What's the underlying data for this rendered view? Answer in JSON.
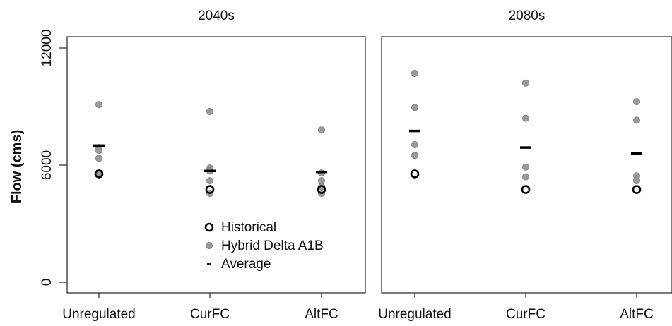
{
  "chart_data": {
    "type": "scatter",
    "ylabel": "Flow (cms)",
    "ylim": [
      0,
      12000
    ],
    "yticks": [
      0,
      6000,
      12000
    ],
    "categories": [
      "Unregulated",
      "CurFC",
      "AltFC"
    ],
    "legend": {
      "placement": "bottom-center of left panel",
      "entries": [
        {
          "label": "Historical",
          "marker": "open-circle"
        },
        {
          "label": "Hybrid Delta A1B",
          "marker": "gray-dot"
        },
        {
          "label": "Average",
          "marker": "dash"
        }
      ]
    },
    "colors": {
      "hybrid": "#9a9a9a",
      "historical": "#000000",
      "average": "#000000"
    },
    "panels": [
      {
        "title": "2040s",
        "series": [
          {
            "name": "Historical",
            "values": [
              5550,
              4750,
              4750
            ]
          },
          {
            "name": "Hybrid Delta A1B",
            "values": [
              [
                9100,
                6900,
                6750,
                6350,
                5600
              ],
              [
                8750,
                5850,
                5700,
                5200,
                4550
              ],
              [
                7800,
                5600,
                5200,
                4900,
                4550
              ]
            ]
          },
          {
            "name": "Average",
            "values": [
              7000,
              5700,
              5650
            ]
          }
        ]
      },
      {
        "title": "2080s",
        "series": [
          {
            "name": "Historical",
            "values": [
              5550,
              4750,
              4750
            ]
          },
          {
            "name": "Hybrid Delta A1B",
            "values": [
              [
                10700,
                8950,
                7050,
                6500
              ],
              [
                10200,
                8400,
                5900,
                5400
              ],
              [
                9250,
                8300,
                5450,
                5200
              ]
            ]
          },
          {
            "name": "Average",
            "values": [
              7750,
              6900,
              6600
            ]
          }
        ]
      }
    ]
  }
}
